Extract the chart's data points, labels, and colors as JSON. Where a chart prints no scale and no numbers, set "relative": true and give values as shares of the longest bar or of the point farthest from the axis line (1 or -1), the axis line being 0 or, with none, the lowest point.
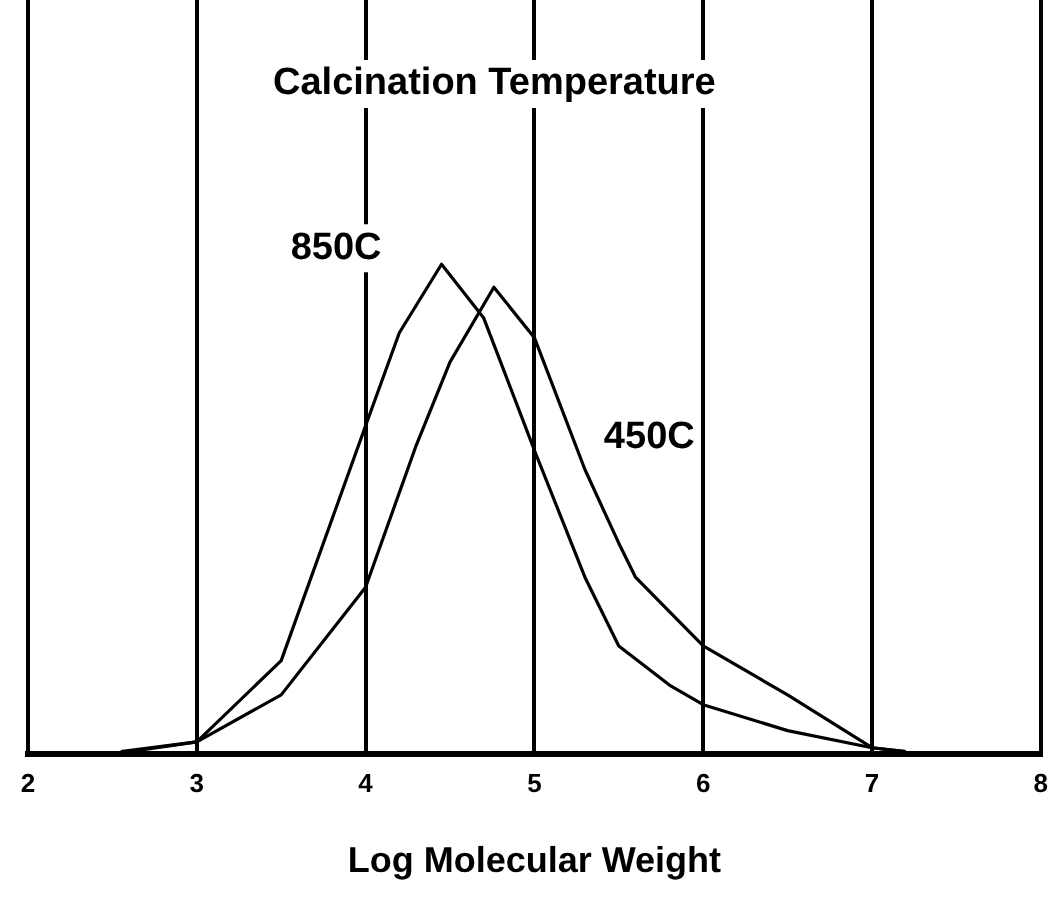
{
  "chart_data": {
    "type": "line",
    "title": "Calcination Temperature",
    "xlabel": "Log Molecular Weight",
    "relative": true,
    "xlim": [
      2,
      8
    ],
    "xticks": [
      2,
      3,
      4,
      5,
      6,
      7,
      8
    ],
    "grid": "x",
    "legend": false,
    "marker": "none",
    "line_style": "solid",
    "series": [
      {
        "name": "850C",
        "color": "#000000",
        "x": [
          2.55,
          3,
          3.5,
          4,
          4.2,
          4.45,
          4.7,
          4.9,
          5,
          5.3,
          5.5,
          5.8,
          6,
          6.5,
          7,
          7.2
        ],
        "values": [
          0.004,
          0.024,
          0.19,
          0.67,
          0.86,
          1,
          0.89,
          0.71,
          0.62,
          0.36,
          0.22,
          0.14,
          0.1,
          0.047,
          0.012,
          0.004
        ]
      },
      {
        "name": "450C",
        "color": "#000000",
        "x": [
          2.6,
          3,
          3.5,
          4,
          4.3,
          4.5,
          4.76,
          5,
          5.3,
          5.5,
          5.6,
          6,
          6.5,
          7,
          7.2
        ],
        "values": [
          0.004,
          0.024,
          0.12,
          0.34,
          0.63,
          0.8,
          0.953,
          0.85,
          0.58,
          0.43,
          0.36,
          0.22,
          0.12,
          0.012,
          0.004
        ]
      }
    ]
  }
}
